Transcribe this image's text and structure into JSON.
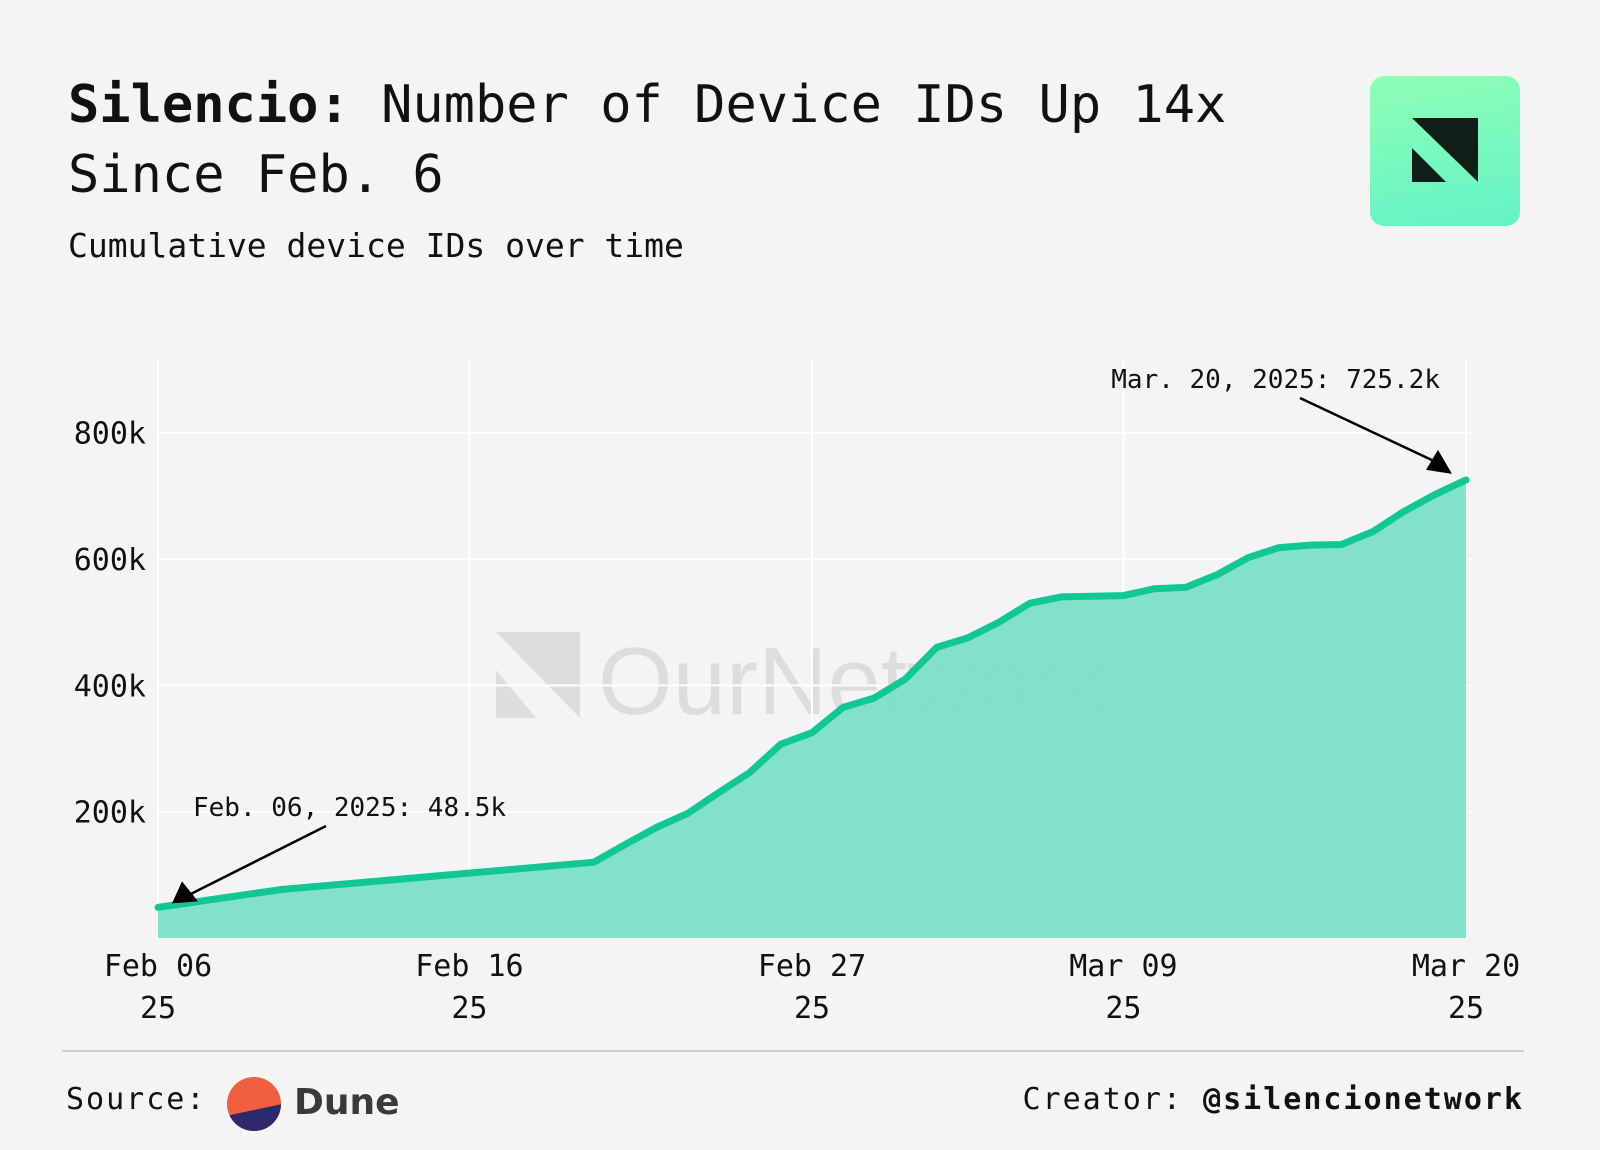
{
  "header": {
    "title_brand": "Silencio:",
    "title_rest": " Number of Device IDs Up 14x Since Feb. 6",
    "subtitle": "Cumulative device IDs over time"
  },
  "watermark": {
    "text": "OurNetwork"
  },
  "footer": {
    "source_label": "Source:",
    "source_name": "Dune",
    "creator_label": "Creator:",
    "creator_handle": "@silencionetwork"
  },
  "colors": {
    "line": "#10c890",
    "area": "#7be0c6",
    "grid": "#ffffff",
    "text": "#111111",
    "background": "#f4f4f4"
  },
  "chart_data": {
    "type": "area",
    "title": "Silencio: Number of Device IDs Up 14x Since Feb. 6",
    "subtitle": "Cumulative device IDs over time",
    "xlabel": "",
    "ylabel": "",
    "x_ticks": [
      {
        "date": "2025-02-06",
        "line1": "Feb 06",
        "line2": "25"
      },
      {
        "date": "2025-02-16",
        "line1": "Feb 16",
        "line2": "25"
      },
      {
        "date": "2025-02-27",
        "line1": "Feb 27",
        "line2": "25"
      },
      {
        "date": "2025-03-09",
        "line1": "Mar 09",
        "line2": "25"
      },
      {
        "date": "2025-03-20",
        "line1": "Mar 20",
        "line2": "25"
      }
    ],
    "y_ticks": [
      {
        "value": 200000,
        "label": "200k"
      },
      {
        "value": 400000,
        "label": "400k"
      },
      {
        "value": 600000,
        "label": "600k"
      },
      {
        "value": 800000,
        "label": "800k"
      }
    ],
    "xlim": [
      "2025-02-06",
      "2025-03-20"
    ],
    "ylim": [
      0,
      915000
    ],
    "grid": true,
    "series": [
      {
        "points": [
          [
            "2025-02-06",
            48500
          ],
          [
            "2025-02-09",
            70000
          ],
          [
            "2025-02-10",
            77000
          ],
          [
            "2025-02-20",
            120000
          ],
          [
            "2025-02-21",
            148000
          ],
          [
            "2025-02-22",
            175000
          ],
          [
            "2025-02-23",
            197000
          ],
          [
            "2025-02-24",
            230000
          ],
          [
            "2025-02-25",
            262000
          ],
          [
            "2025-02-26",
            307000
          ],
          [
            "2025-02-27",
            325000
          ],
          [
            "2025-02-28",
            365000
          ],
          [
            "2025-03-01",
            380000
          ],
          [
            "2025-03-02",
            410000
          ],
          [
            "2025-03-03",
            460000
          ],
          [
            "2025-03-04",
            475000
          ],
          [
            "2025-03-05",
            500000
          ],
          [
            "2025-03-06",
            530000
          ],
          [
            "2025-03-07",
            540000
          ],
          [
            "2025-03-08",
            541000
          ],
          [
            "2025-03-09",
            542000
          ],
          [
            "2025-03-10",
            553000
          ],
          [
            "2025-03-11",
            555000
          ],
          [
            "2025-03-12",
            575000
          ],
          [
            "2025-03-13",
            602000
          ],
          [
            "2025-03-14",
            618000
          ],
          [
            "2025-03-15",
            622000
          ],
          [
            "2025-03-16",
            623000
          ],
          [
            "2025-03-17",
            643000
          ],
          [
            "2025-03-18",
            675000
          ],
          [
            "2025-03-19",
            702000
          ],
          [
            "2025-03-20",
            725200
          ]
        ]
      }
    ],
    "annotations": [
      {
        "text": "Feb. 06, 2025: 48.5k",
        "date": "2025-02-06",
        "value": 48500
      },
      {
        "text": "Mar. 20, 2025: 725.2k",
        "date": "2025-03-20",
        "value": 725200
      }
    ]
  }
}
